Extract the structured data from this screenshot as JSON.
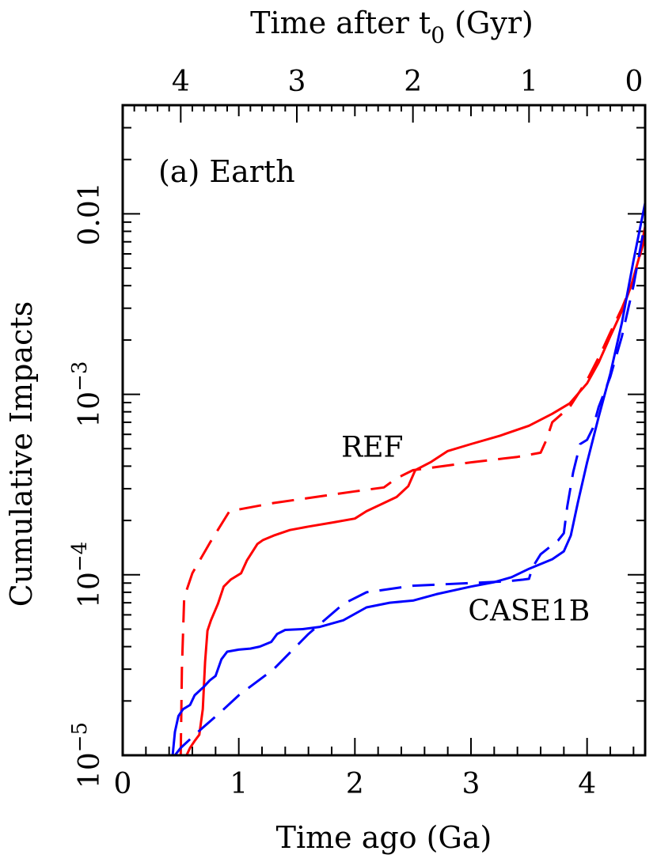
{
  "chart_data": {
    "type": "line",
    "panel_label": "(a) Earth",
    "xlabel": "Time ago (Ga)",
    "x2label_main": "Time after t",
    "x2label_sub": "0",
    "x2label_unit": " (Gyr)",
    "ylabel": "Cumulative Impacts",
    "xlim": [
      0,
      4.5
    ],
    "ylim": [
      1e-05,
      0.04
    ],
    "yscale": "log",
    "xticks": [
      0,
      1,
      2,
      3,
      4
    ],
    "xtick_labels": [
      "0",
      "1",
      "2",
      "3",
      "4"
    ],
    "x2ticks": [
      0.5,
      1.5,
      2.5,
      3.5,
      4.5
    ],
    "x2tick_labels": [
      "4",
      "3",
      "2",
      "1",
      "0"
    ],
    "yticks": [
      1e-05,
      0.0001,
      0.001,
      0.01
    ],
    "ytick_labels": [
      {
        "base": "10",
        "exp": "−5"
      },
      {
        "base": "10",
        "exp": "−4"
      },
      {
        "base": "10",
        "exp": "−3"
      },
      {
        "base": "0.01",
        "exp": ""
      }
    ],
    "series": [
      {
        "name": "REF",
        "color": "#ff0000",
        "dash": false,
        "points": [
          [
            0.55,
            1e-05
          ],
          [
            0.58,
            1.1e-05
          ],
          [
            0.62,
            1.2e-05
          ],
          [
            0.66,
            1.3e-05
          ],
          [
            0.69,
            1.8e-05
          ],
          [
            0.71,
            3.3e-05
          ],
          [
            0.73,
            4.9e-05
          ],
          [
            0.76,
            5.6e-05
          ],
          [
            0.82,
            6.9e-05
          ],
          [
            0.87,
            8.6e-05
          ],
          [
            0.93,
            9.4e-05
          ],
          [
            1.02,
            0.000102
          ],
          [
            1.07,
            0.00012
          ],
          [
            1.12,
            0.000135
          ],
          [
            1.16,
            0.000148
          ],
          [
            1.21,
            0.000156
          ],
          [
            1.3,
            0.000165
          ],
          [
            1.44,
            0.000177
          ],
          [
            1.6,
            0.000185
          ],
          [
            1.81,
            0.000195
          ],
          [
            2.0,
            0.000205
          ],
          [
            2.1,
            0.000225
          ],
          [
            2.25,
            0.00025
          ],
          [
            2.36,
            0.00027
          ],
          [
            2.46,
            0.00031
          ],
          [
            2.52,
            0.00038
          ],
          [
            2.65,
            0.00042
          ],
          [
            2.8,
            0.000485
          ],
          [
            3.0,
            0.00053
          ],
          [
            3.25,
            0.00059
          ],
          [
            3.5,
            0.00067
          ],
          [
            3.7,
            0.00078
          ],
          [
            3.85,
            0.00089
          ],
          [
            4.0,
            0.00115
          ],
          [
            4.1,
            0.0015
          ],
          [
            4.2,
            0.0021
          ],
          [
            4.3,
            0.0029
          ],
          [
            4.38,
            0.004
          ],
          [
            4.45,
            0.0058
          ],
          [
            4.5,
            0.0085
          ]
        ]
      },
      {
        "name": "REF",
        "color": "#ff0000",
        "dash": true,
        "points": [
          [
            0.5,
            1e-05
          ],
          [
            0.51,
            3e-05
          ],
          [
            0.53,
            7.5e-05
          ],
          [
            0.6,
            0.000102
          ],
          [
            0.75,
            0.00015
          ],
          [
            0.92,
            0.000225
          ],
          [
            1.3,
            0.00025
          ],
          [
            2.0,
            0.00029
          ],
          [
            2.25,
            0.000305
          ],
          [
            2.35,
            0.00034
          ],
          [
            2.5,
            0.00038
          ],
          [
            3.0,
            0.00042
          ],
          [
            3.4,
            0.00045
          ],
          [
            3.6,
            0.000475
          ],
          [
            3.65,
            0.00056
          ],
          [
            3.7,
            0.0007
          ],
          [
            3.85,
            0.00085
          ],
          [
            4.0,
            0.0012
          ],
          [
            4.12,
            0.0017
          ],
          [
            4.2,
            0.0022
          ],
          [
            4.3,
            0.003
          ],
          [
            4.4,
            0.0043
          ],
          [
            4.5,
            0.0075
          ]
        ]
      },
      {
        "name": "CASE1B",
        "color": "#0000ff",
        "dash": false,
        "points": [
          [
            0.43,
            1e-05
          ],
          [
            0.45,
            1.35e-05
          ],
          [
            0.48,
            1.65e-05
          ],
          [
            0.52,
            1.8e-05
          ],
          [
            0.58,
            1.9e-05
          ],
          [
            0.62,
            2.15e-05
          ],
          [
            0.7,
            2.4e-05
          ],
          [
            0.75,
            2.6e-05
          ],
          [
            0.8,
            2.75e-05
          ],
          [
            0.85,
            3.4e-05
          ],
          [
            0.9,
            3.75e-05
          ],
          [
            1.0,
            3.85e-05
          ],
          [
            1.1,
            3.9e-05
          ],
          [
            1.18,
            4e-05
          ],
          [
            1.28,
            4.25e-05
          ],
          [
            1.33,
            4.7e-05
          ],
          [
            1.4,
            4.95e-05
          ],
          [
            1.55,
            5e-05
          ],
          [
            1.7,
            5.15e-05
          ],
          [
            1.9,
            5.6e-05
          ],
          [
            2.1,
            6.6e-05
          ],
          [
            2.3,
            7e-05
          ],
          [
            2.5,
            7.2e-05
          ],
          [
            2.7,
            7.8e-05
          ],
          [
            3.0,
            8.6e-05
          ],
          [
            3.2,
            9.1e-05
          ],
          [
            3.35,
            9.7e-05
          ],
          [
            3.5,
            0.000108
          ],
          [
            3.7,
            0.000122
          ],
          [
            3.8,
            0.000135
          ],
          [
            3.86,
            0.000165
          ],
          [
            3.92,
            0.00025
          ],
          [
            4.0,
            0.00042
          ],
          [
            4.1,
            0.00075
          ],
          [
            4.2,
            0.0013
          ],
          [
            4.3,
            0.0025
          ],
          [
            4.4,
            0.0055
          ],
          [
            4.5,
            0.0115
          ]
        ]
      },
      {
        "name": "CASE1B",
        "color": "#0000ff",
        "dash": true,
        "points": [
          [
            0.45,
            1e-05
          ],
          [
            0.5,
            1.1e-05
          ],
          [
            0.65,
            1.35e-05
          ],
          [
            0.85,
            1.75e-05
          ],
          [
            1.0,
            2.15e-05
          ],
          [
            1.3,
            3e-05
          ],
          [
            1.6,
            4.7e-05
          ],
          [
            1.9,
            6.9e-05
          ],
          [
            2.1,
            8e-05
          ],
          [
            2.5,
            8.7e-05
          ],
          [
            3.0,
            9e-05
          ],
          [
            3.3,
            9.2e-05
          ],
          [
            3.45,
            9.4e-05
          ],
          [
            3.5,
            9.5e-05
          ],
          [
            3.53,
            0.00011
          ],
          [
            3.6,
            0.00013
          ],
          [
            3.75,
            0.000155
          ],
          [
            3.8,
            0.00017
          ],
          [
            3.83,
            0.00024
          ],
          [
            3.88,
            0.00037
          ],
          [
            3.94,
            0.00053
          ],
          [
            4.0,
            0.00056
          ],
          [
            4.05,
            0.00065
          ],
          [
            4.1,
            0.00085
          ],
          [
            4.2,
            0.00125
          ],
          [
            4.3,
            0.0021
          ],
          [
            4.4,
            0.004
          ],
          [
            4.5,
            0.009
          ]
        ]
      }
    ],
    "annotations": [
      {
        "text": "REF",
        "x": 2.15,
        "y": 0.00045
      },
      {
        "text": "CASE1B",
        "x": 3.5,
        "y": 5.6e-05
      }
    ]
  }
}
